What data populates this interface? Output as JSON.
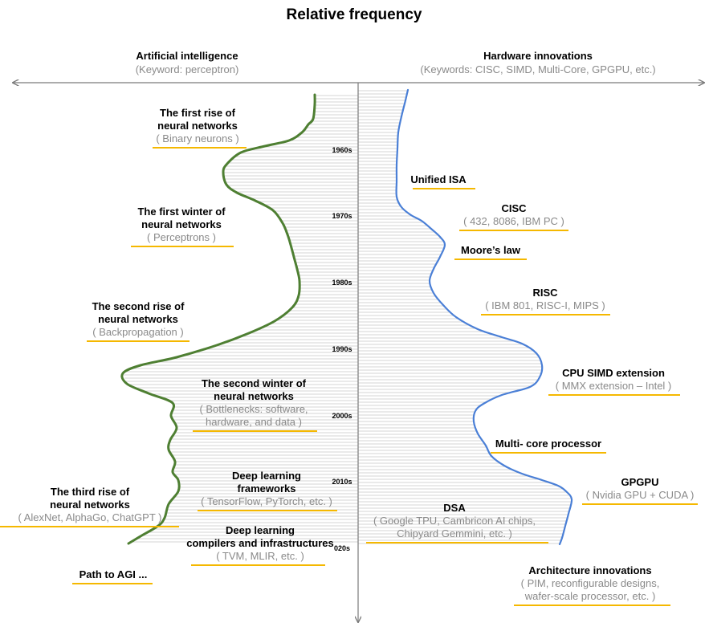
{
  "title": "Relative frequency",
  "left_header": {
    "title": "Artificial intelligence",
    "subtitle": "(Keyword: perceptron)"
  },
  "right_header": {
    "title": "Hardware innovations",
    "subtitle": "(Keywords: CISC, SIMD, Multi-Core, GPGPU, etc.)"
  },
  "year_ticks": [
    "1960s",
    "1970s",
    "1980s",
    "1990s",
    "2000s",
    "2010s",
    "020s"
  ],
  "colors": {
    "ai_curve": "#4e7f32",
    "hw_curve": "#4a7fd6",
    "underline": "#f5b800",
    "fill_lines": "#c8c8c8",
    "axis": "#7a7a7a"
  },
  "ai_events": [
    {
      "title": [
        "The first rise of",
        "neural networks"
      ],
      "sub": [
        "( Binary neurons )"
      ]
    },
    {
      "title": [
        "The first winter of",
        "neural networks"
      ],
      "sub": [
        "( Perceptrons )"
      ]
    },
    {
      "title": [
        "The second rise of",
        "neural networks"
      ],
      "sub": [
        "( Backpropagation )"
      ]
    },
    {
      "title": [
        "The second winter of",
        "neural networks"
      ],
      "sub": [
        "( Bottlenecks: software,",
        "hardware, and data )"
      ]
    },
    {
      "title": [
        "Deep learning",
        "frameworks"
      ],
      "sub": [
        "( TensorFlow, PyTorch, etc. )"
      ]
    },
    {
      "title": [
        "The third rise of",
        "neural networks"
      ],
      "sub": [
        "( AlexNet, AlphaGo, ChatGPT )"
      ]
    },
    {
      "title": [
        "Deep learning",
        "compilers and infrastructures"
      ],
      "sub": [
        "( TVM, MLIR, etc. )"
      ]
    },
    {
      "title": [
        "Path to AGI ..."
      ],
      "sub": []
    }
  ],
  "hw_events": [
    {
      "title": [
        "Unified ISA"
      ],
      "sub": []
    },
    {
      "title": [
        "CISC"
      ],
      "sub": [
        "( 432, 8086, IBM PC )"
      ]
    },
    {
      "title": [
        "Moore’s  law"
      ],
      "sub": []
    },
    {
      "title": [
        "RISC"
      ],
      "sub": [
        "( IBM 801, RISC-I, MIPS )"
      ]
    },
    {
      "title": [
        "CPU SIMD extension"
      ],
      "sub": [
        "( MMX extension – Intel )"
      ]
    },
    {
      "title": [
        "Multi- core processor"
      ],
      "sub": []
    },
    {
      "title": [
        "GPGPU"
      ],
      "sub": [
        "( Nvidia GPU + CUDA )"
      ]
    },
    {
      "title": [
        "DSA"
      ],
      "sub": [
        "( Google TPU, Cambricon AI chips,",
        "Chipyard Gemmini, etc. )"
      ]
    },
    {
      "title": [
        "Architecture innovations"
      ],
      "sub": [
        "( PIM, reconfigurable designs,",
        "wafer-scale processor, etc. )"
      ]
    }
  ]
}
